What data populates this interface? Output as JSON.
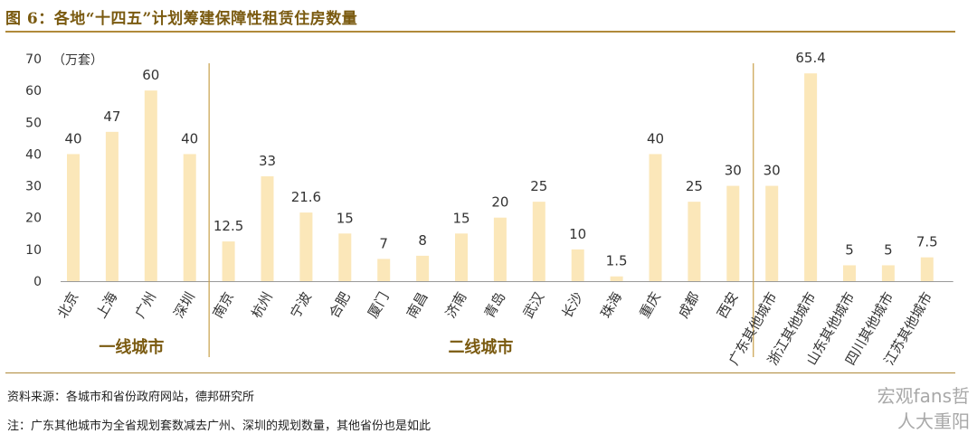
{
  "figure": {
    "title": "图 6：各地“十四五”计划筹建保障性租赁住房数量",
    "source": "资料来源：各城市和省份政府网站，德邦研究所",
    "note": "注：广东其他城市为全省规划套数减去广州、深圳的规划数量，其他省份也是如此",
    "watermark_lines": [
      "宏观fans哲",
      "人大重阳"
    ]
  },
  "chart_data": {
    "type": "bar",
    "title": "",
    "ylabel": "（万套）",
    "xlabel": "",
    "ylim": [
      0,
      70
    ],
    "yticks": [
      0,
      10,
      20,
      30,
      40,
      50,
      60,
      70
    ],
    "grid": false,
    "categories": [
      "北京",
      "上海",
      "广州",
      "深圳",
      "南京",
      "杭州",
      "宁波",
      "合肥",
      "厦门",
      "南昌",
      "济南",
      "青岛",
      "武汉",
      "长沙",
      "珠海",
      "重庆",
      "成都",
      "西安",
      "广东其他城市",
      "浙江其他城市",
      "山东其他城市",
      "四川其他城市",
      "江苏其他城市"
    ],
    "values": [
      40,
      47,
      60,
      40,
      12.5,
      33,
      21.6,
      15,
      7,
      8,
      15,
      20,
      25,
      10,
      1.5,
      40,
      25,
      30,
      30,
      65.4,
      5,
      5,
      7.5
    ],
    "value_labels": [
      "40",
      "47",
      "60",
      "40",
      "12.5",
      "33",
      "21.6",
      "15",
      "7",
      "8",
      "15",
      "20",
      "25",
      "10",
      "1.5",
      "40",
      "25",
      "30",
      "30",
      "65.4",
      "5",
      "5",
      "7.5"
    ],
    "groups": [
      {
        "label": "一线城市",
        "start": 0,
        "end": 3
      },
      {
        "label": "二线城市",
        "start": 4,
        "end": 17
      }
    ],
    "colors": {
      "bar": "#fbe7b9",
      "divider": "#c9a04a",
      "group_label": "#7a5a10"
    }
  }
}
